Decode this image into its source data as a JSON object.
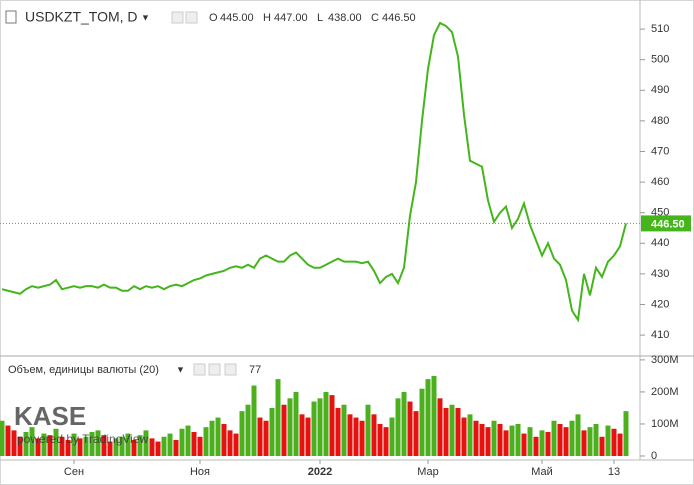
{
  "chart_data": [
    {
      "type": "line",
      "title": "USDKZT_TOM, D",
      "ohlc": [
        {
          "key": "O",
          "value": "445.00"
        },
        {
          "key": "H",
          "value": "447.00"
        },
        {
          "key": "L",
          "value": "438.00"
        },
        {
          "key": "C",
          "value": "446.50"
        }
      ],
      "categories": [
        null,
        null,
        null,
        null,
        null,
        null,
        null,
        null,
        null,
        null,
        null,
        null,
        "Сен",
        null,
        null,
        null,
        null,
        null,
        null,
        null,
        null,
        null,
        null,
        null,
        null,
        null,
        null,
        null,
        null,
        null,
        null,
        null,
        null,
        "Ноя",
        null,
        null,
        null,
        null,
        null,
        null,
        null,
        null,
        null,
        null,
        null,
        null,
        null,
        null,
        null,
        null,
        null,
        null,
        null,
        "2022",
        null,
        null,
        null,
        null,
        null,
        null,
        null,
        null,
        null,
        null,
        null,
        null,
        null,
        null,
        null,
        null,
        null,
        "Мар",
        null,
        null,
        null,
        null,
        null,
        null,
        null,
        null,
        null,
        null,
        null,
        null,
        null,
        null,
        null,
        null,
        null,
        null,
        "Май",
        null,
        null,
        null,
        null,
        null,
        null,
        null,
        null,
        null,
        null,
        null,
        "13",
        null,
        null
      ],
      "series": [
        {
          "color": "#45b51c",
          "values": [
            425,
            424.5,
            424,
            423.5,
            425,
            426,
            425.5,
            426,
            426.5,
            428,
            425,
            425.5,
            426,
            425.5,
            426,
            426,
            425.5,
            426.5,
            425.5,
            425.5,
            424.5,
            424.5,
            426,
            425,
            426,
            425.5,
            426,
            425,
            426,
            426.5,
            426,
            427,
            428,
            428.5,
            429.5,
            430,
            430.5,
            431,
            432,
            432.5,
            432,
            433,
            432,
            435,
            436,
            435,
            434,
            434,
            436,
            437,
            435,
            433,
            432,
            432,
            433,
            434,
            435,
            434,
            434,
            434,
            433.5,
            434,
            431,
            427,
            429,
            430,
            427,
            432,
            449,
            460,
            480,
            497,
            508,
            512,
            511,
            509,
            501,
            482,
            467,
            466,
            465,
            454,
            447,
            450,
            452,
            445,
            448,
            453,
            446,
            441,
            436,
            440,
            435,
            433,
            428,
            418,
            415,
            430,
            423,
            432,
            429,
            434,
            436,
            439,
            446.5
          ]
        }
      ],
      "ylim": [
        403.5,
        519.5
      ],
      "yticks": [
        410,
        420,
        430,
        440,
        450,
        460,
        470,
        480,
        490,
        500,
        510
      ],
      "last_price": {
        "value": 446.5,
        "label": "446.50"
      }
    },
    {
      "type": "bar",
      "title": "Объем, единицы валюты (20)",
      "value_label": "77",
      "up_color": "#4caf1e",
      "down_color": "#e5130f",
      "values": [
        110,
        95,
        80,
        60,
        75,
        90,
        55,
        70,
        65,
        85,
        60,
        50,
        70,
        55,
        60,
        75,
        80,
        65,
        45,
        55,
        60,
        70,
        50,
        65,
        80,
        55,
        45,
        60,
        70,
        50,
        85,
        95,
        75,
        60,
        90,
        110,
        120,
        100,
        80,
        70,
        140,
        160,
        220,
        120,
        110,
        150,
        240,
        160,
        180,
        200,
        130,
        120,
        170,
        180,
        200,
        190,
        150,
        160,
        130,
        120,
        110,
        160,
        130,
        100,
        90,
        120,
        180,
        200,
        170,
        140,
        210,
        240,
        250,
        180,
        150,
        160,
        150,
        120,
        130,
        110,
        100,
        90,
        110,
        100,
        80,
        95,
        100,
        70,
        90,
        60,
        80,
        75,
        110,
        100,
        90,
        110,
        130,
        80,
        90,
        100,
        60,
        95,
        85,
        70,
        140
      ],
      "ylim": [
        -12.5,
        309
      ],
      "yticks": [
        {
          "value": 300,
          "label": "300M"
        },
        {
          "value": 200,
          "label": "200M"
        },
        {
          "value": 100,
          "label": "100M"
        },
        0
      ]
    }
  ],
  "watermark": {
    "brand": "KASE",
    "powered": "powered by TradingView"
  }
}
